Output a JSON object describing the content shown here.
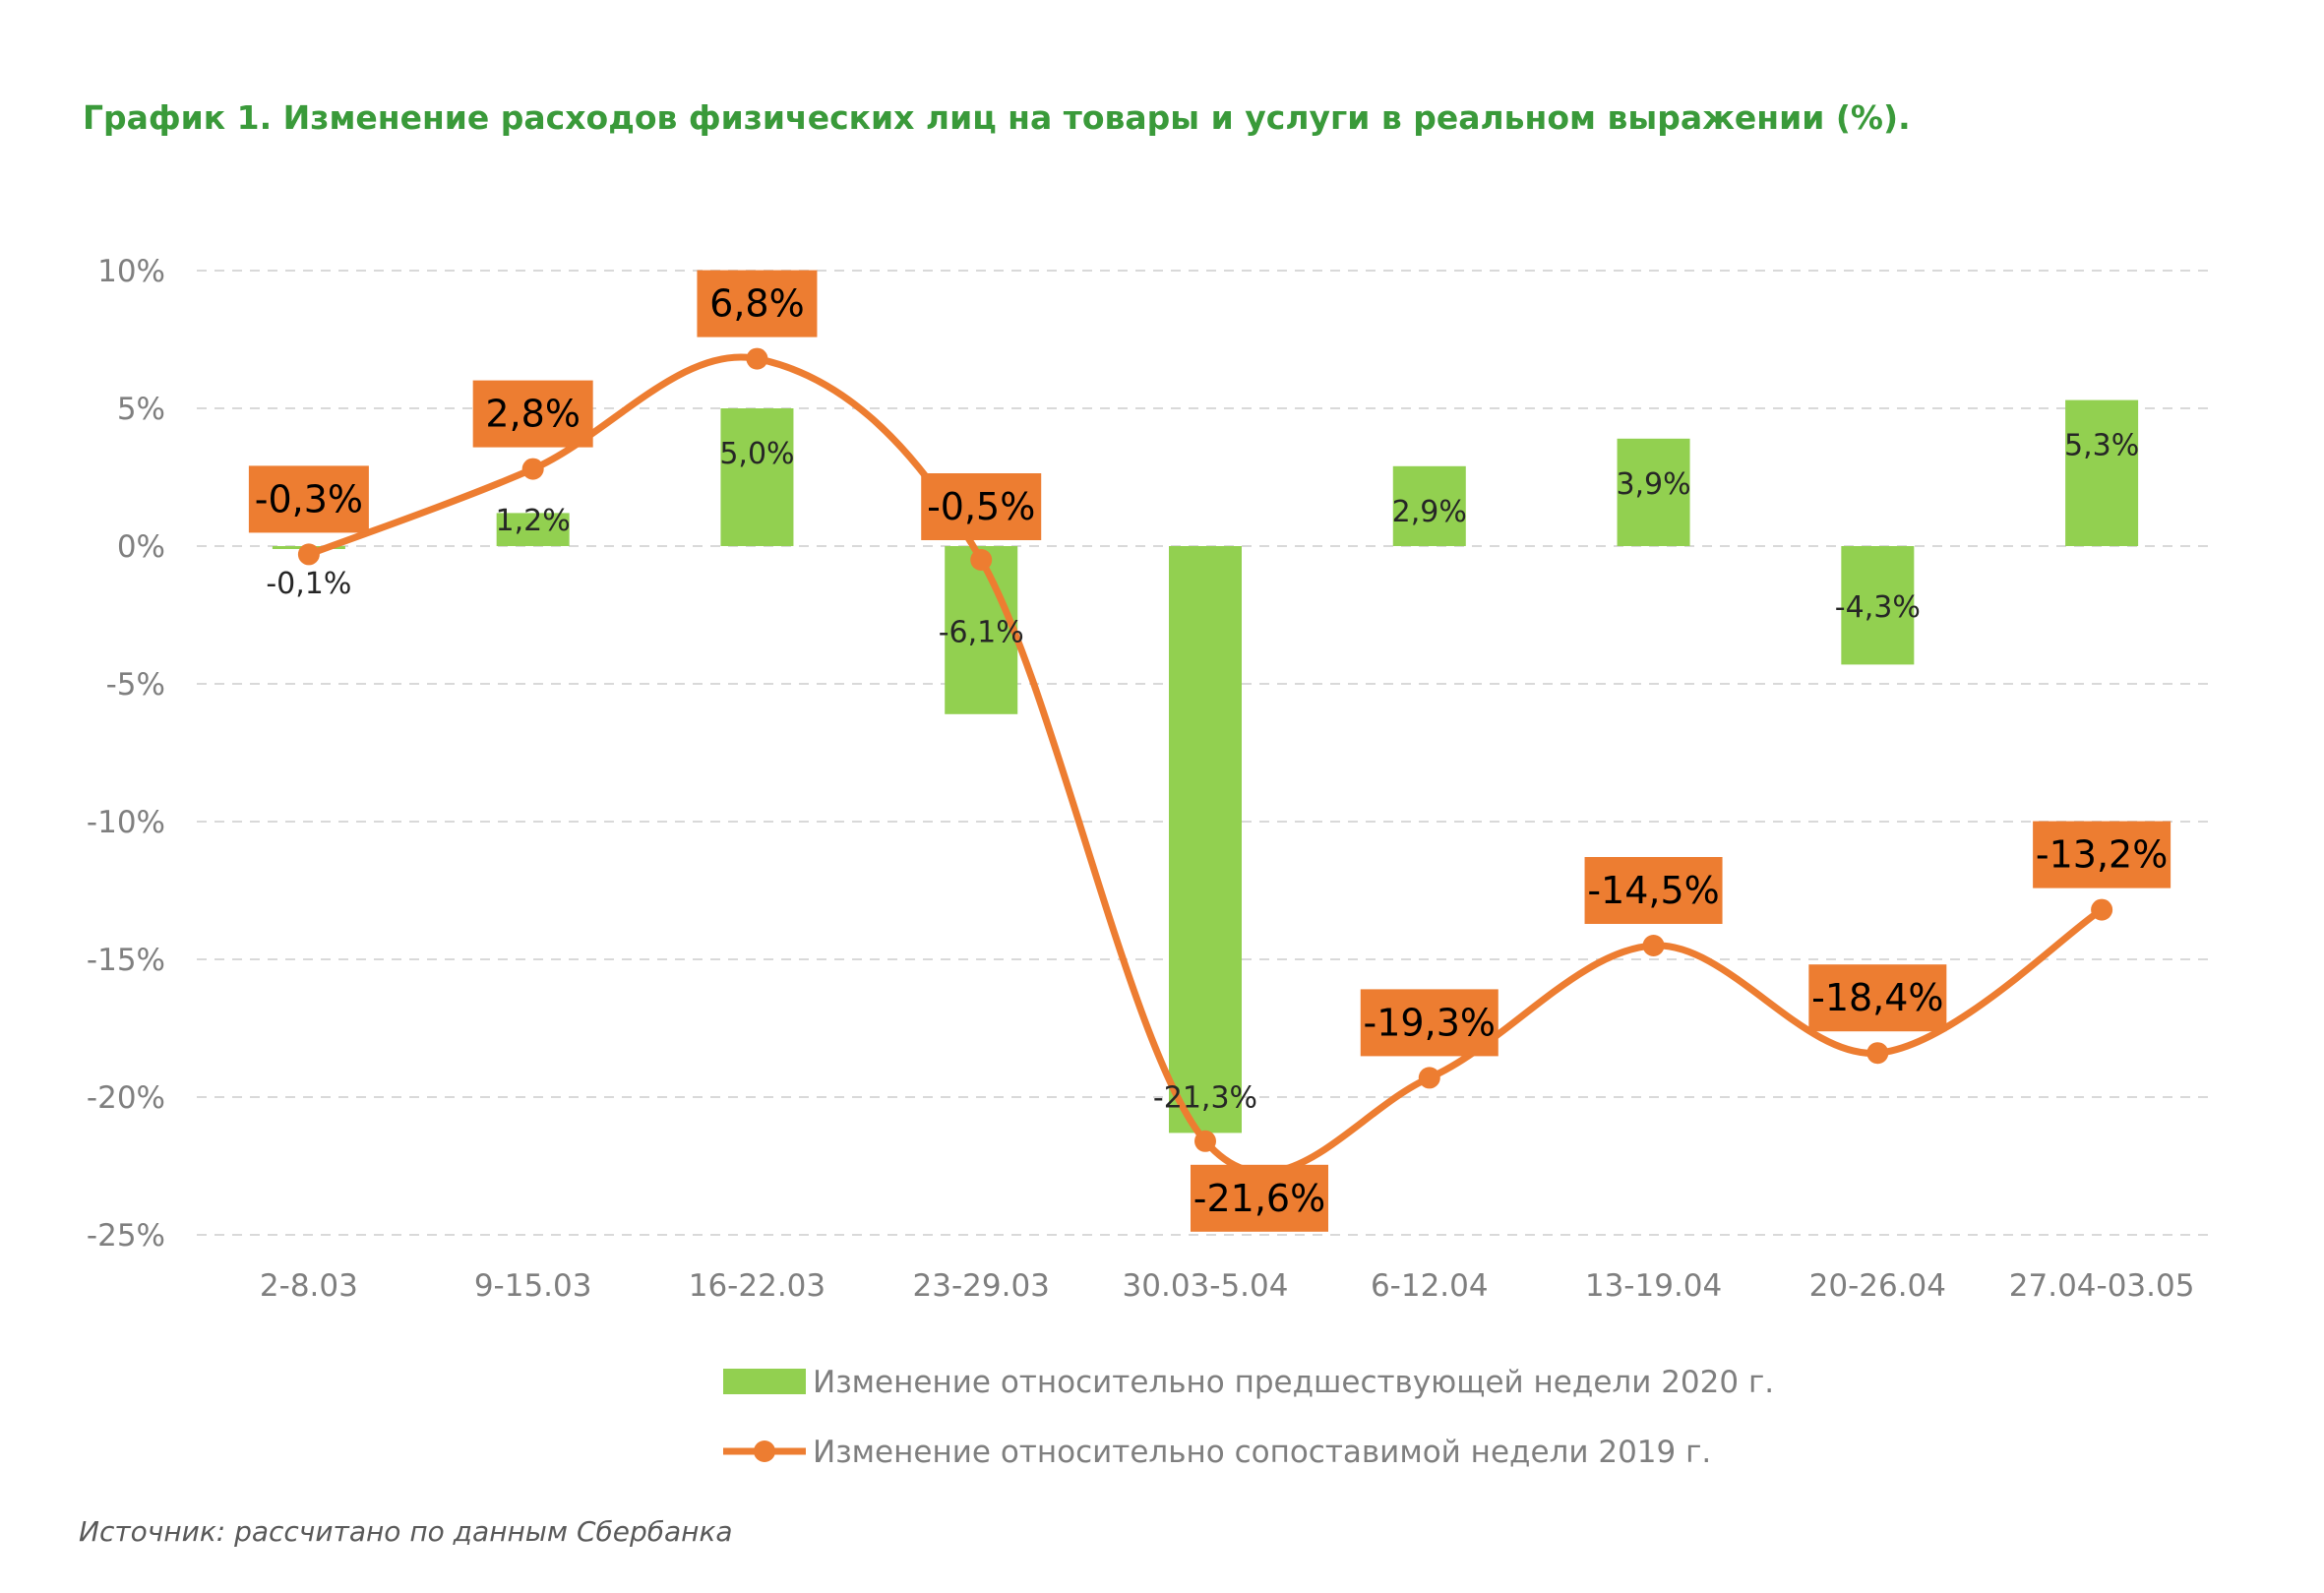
{
  "title": "График 1. Изменение расходов физических лиц на товары и услуги в реальном выражении (%).",
  "source": "Источник: рассчитано по данным Сбербанка",
  "colors": {
    "bar": "#92d050",
    "line": "#ed7d31",
    "title": "#3a9a3a",
    "grid": "#d9d9d9"
  },
  "chart_data": {
    "type": "bar",
    "categories": [
      "2-8.03",
      "9-15.03",
      "16-22.03",
      "23-29.03",
      "30.03-5.04",
      "6-12.04",
      "13-19.04",
      "20-26.04",
      "27.04-03.05"
    ],
    "ylim": [
      -25,
      10
    ],
    "yticks": [
      10,
      5,
      0,
      -5,
      -10,
      -15,
      -20,
      -25
    ],
    "ytick_labels": [
      "10%",
      "5%",
      "0%",
      "-5%",
      "-10%",
      "-15%",
      "-20%",
      "-25%"
    ],
    "grid": true,
    "legend_position": "bottom",
    "series": [
      {
        "name": "Изменение относительно предшествующей недели 2020 г.",
        "type": "bar",
        "values": [
          -0.1,
          1.2,
          5.0,
          -6.1,
          -21.3,
          2.9,
          3.9,
          -4.3,
          5.3
        ],
        "labels": [
          "-0,1%",
          "1,2%",
          "5,0%",
          "-6,1%",
          "-21,3%",
          "2,9%",
          "3,9%",
          "-4,3%",
          "5,3%"
        ]
      },
      {
        "name": "Изменение относительно сопоставимой недели 2019 г.",
        "type": "line",
        "values": [
          -0.3,
          2.8,
          6.8,
          -0.5,
          -21.6,
          -19.3,
          -14.5,
          -18.4,
          -13.2
        ],
        "labels": [
          "-0,3%",
          "2,8%",
          "6,8%",
          "-0,5%",
          "-21,6%",
          "-19,3%",
          "-14,5%",
          "-18,4%",
          "-13,2%"
        ]
      }
    ]
  }
}
